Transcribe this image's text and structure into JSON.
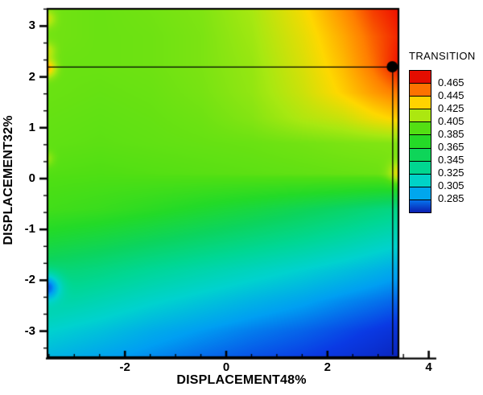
{
  "figure": {
    "background": "#ffffff"
  },
  "axes": {
    "x": {
      "title": "DISPLACEMENT48%",
      "tick_labels": [
        "-2",
        "0",
        "2",
        "4"
      ],
      "tick_values": [
        -2,
        0,
        2,
        4
      ],
      "minor_tick_step": 0.5
    },
    "y": {
      "title": "DISPLACEMENT32%",
      "tick_labels": [
        "3",
        "2",
        "1",
        "0",
        "-1",
        "-2",
        "-3"
      ],
      "tick_values": [
        3,
        2,
        1,
        0,
        -1,
        -2,
        -3
      ],
      "minor_ticks_per_unit": 3
    }
  },
  "legend": {
    "title": "TRANSITION",
    "labels": [
      "0.465",
      "0.445",
      "0.425",
      "0.405",
      "0.385",
      "0.365",
      "0.345",
      "0.325",
      "0.305",
      "0.285"
    ]
  },
  "chart_data": {
    "type": "heatmap",
    "title": "",
    "xlabel": "DISPLACEMENT48%",
    "ylabel": "DISPLACEMENT32%",
    "colorbar_label": "TRANSITION",
    "xlim": [
      -3.55,
      4
    ],
    "ylim": [
      -3.55,
      3.37
    ],
    "contour_levels": [
      0.285,
      0.305,
      0.325,
      0.345,
      0.365,
      0.385,
      0.405,
      0.425,
      0.445,
      0.465
    ],
    "x": [
      -3.55,
      -2.5,
      -1.5,
      -0.5,
      0.5,
      1.5,
      2.3,
      2.9,
      3.44
    ],
    "y": [
      3.37,
      2.8,
      2.2,
      1.7,
      1.2,
      0.7,
      0.1,
      -0.6,
      -1.2,
      -1.8,
      -2.4,
      -3.0,
      -3.55
    ],
    "values": [
      [
        0.402,
        0.4,
        0.402,
        0.405,
        0.414,
        0.432,
        0.45,
        0.464,
        0.471
      ],
      [
        0.402,
        0.4,
        0.401,
        0.404,
        0.412,
        0.428,
        0.444,
        0.458,
        0.468
      ],
      [
        0.4,
        0.4,
        0.401,
        0.404,
        0.41,
        0.425,
        0.44,
        0.455,
        0.472
      ],
      [
        0.4,
        0.399,
        0.4,
        0.403,
        0.409,
        0.422,
        0.436,
        0.447,
        0.455
      ],
      [
        0.399,
        0.398,
        0.399,
        0.401,
        0.406,
        0.416,
        0.422,
        0.431,
        0.437
      ],
      [
        0.398,
        0.397,
        0.398,
        0.399,
        0.4,
        0.402,
        0.404,
        0.405,
        0.406
      ],
      [
        0.395,
        0.394,
        0.395,
        0.396,
        0.397,
        0.398,
        0.399,
        0.4,
        0.4
      ],
      [
        0.388,
        0.384,
        0.378,
        0.371,
        0.364,
        0.356,
        0.349,
        0.343,
        0.338
      ],
      [
        0.368,
        0.362,
        0.355,
        0.348,
        0.341,
        0.334,
        0.327,
        0.321,
        0.316
      ],
      [
        0.346,
        0.34,
        0.332,
        0.325,
        0.318,
        0.311,
        0.305,
        0.3,
        0.295
      ],
      [
        0.33,
        0.322,
        0.314,
        0.307,
        0.3,
        0.294,
        0.288,
        0.284,
        0.28
      ],
      [
        0.312,
        0.305,
        0.297,
        0.291,
        0.285,
        0.28,
        0.275,
        0.271,
        0.267
      ],
      [
        0.3,
        0.293,
        0.287,
        0.281,
        0.276,
        0.272,
        0.268,
        0.264,
        0.259
      ]
    ],
    "spots": [
      {
        "x": -3.55,
        "y": 3.15,
        "amp": 0.02,
        "r": 0.16
      },
      {
        "x": -3.55,
        "y": 2.52,
        "amp": 0.02,
        "r": 0.16
      },
      {
        "x": -3.55,
        "y": 2.18,
        "amp": 0.044,
        "r": 0.17
      },
      {
        "x": -3.55,
        "y": 0.4,
        "amp": 0.013,
        "r": 0.14
      },
      {
        "x": -3.55,
        "y": -2.12,
        "amp": -0.058,
        "r": 0.26
      },
      {
        "x": 3.44,
        "y": 0.1,
        "amp": 0.03,
        "r": 0.22
      }
    ],
    "colormap": [
      [
        0.25,
        "#0a139c"
      ],
      [
        0.272,
        "#0a3ae4"
      ],
      [
        0.292,
        "#009ff2"
      ],
      [
        0.312,
        "#00d2cf"
      ],
      [
        0.333,
        "#00d795"
      ],
      [
        0.353,
        "#0cd45e"
      ],
      [
        0.374,
        "#23da28"
      ],
      [
        0.394,
        "#4fdf13"
      ],
      [
        0.414,
        "#a8e811"
      ],
      [
        0.434,
        "#fed800"
      ],
      [
        0.453,
        "#ff7f00"
      ],
      [
        0.469,
        "#f01800"
      ],
      [
        0.482,
        "#d60000"
      ]
    ],
    "marker": {
      "x": 3.28,
      "y": 2.2,
      "style": "filled-circle",
      "crosshair": true
    }
  }
}
